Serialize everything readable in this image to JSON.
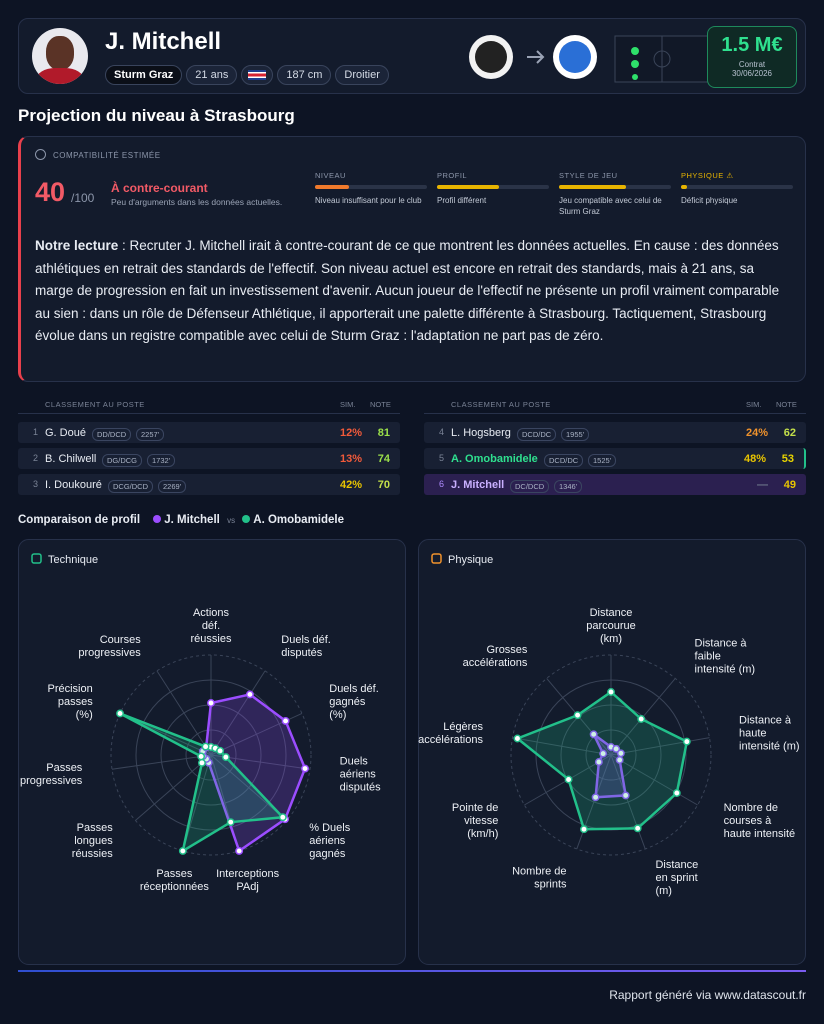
{
  "header": {
    "name": "J. Mitchell",
    "club": "Sturm Graz",
    "age": "21 ans",
    "height": "187 cm",
    "foot": "Droitier",
    "value": "1.5 M€",
    "contract_label": "Contrat",
    "contract_date": "30/06/2026"
  },
  "section_title": "Projection du niveau à Strasbourg",
  "compatibility": {
    "label": "COMPATIBILITÉ ESTIMÉE",
    "score": 40,
    "max": "/100",
    "verdict": "À contre-courant",
    "verdict_note": "Peu d'arguments dans les données actuelles.",
    "criteria": [
      {
        "name": "NIVEAU",
        "level": 30,
        "color": "#f07a2c",
        "note": "Niveau insuffisant pour le club"
      },
      {
        "name": "PROFIL",
        "level": 55,
        "color": "#e8b400",
        "note": "Profil différent"
      },
      {
        "name": "STYLE DE JEU",
        "level": 60,
        "color": "#e8b400",
        "note": "Jeu compatible avec celui de Sturm Graz"
      },
      {
        "name": "PHYSIQUE ⚠",
        "level": 5,
        "color": "#e8b400",
        "note": "Déficit physique"
      }
    ]
  },
  "reading": {
    "label": "Notre lecture",
    "text": ": Recruter J. Mitchell irait à contre-courant de ce que montrent les données actuelles. En cause : des données athlétiques en retrait des standards de l'effectif. Son niveau actuel est encore en retrait des standards, mais à 21 ans, sa marge de progression en fait un investissement d'avenir. Aucun joueur de l'effectif ne présente un profil vraiment comparable au sien : dans un rôle de Défenseur Athlétique, il apporterait une palette différente à Strasbourg. Tactiquement, Strasbourg évolue dans un registre compatible avec celui de Sturm Graz : l'adaptation ne part pas de zéro."
  },
  "ranking": {
    "headers": [
      "CLASSEMENT AU POSTE",
      "SIM.",
      "NOTE"
    ],
    "left": [
      [
        1,
        "G. Doué",
        "DD/DCD",
        "2257'",
        "12%",
        81
      ],
      [
        2,
        "B. Chilwell",
        "DG/DCG",
        "1732'",
        "13%",
        74
      ],
      [
        3,
        "I. Doukouré",
        "DCG/DCD",
        "2269'",
        "42%",
        70
      ]
    ],
    "right": [
      [
        4,
        "L. Hogsberg",
        "DCD/DC",
        "1955'",
        "24%",
        62
      ],
      [
        5,
        "A. Omobamidele",
        "DCD/DC",
        "1525'",
        "48%",
        53
      ],
      [
        6,
        "J. Mitchell",
        "DC/DCD",
        "1346'",
        "—",
        49
      ]
    ]
  },
  "comparison": {
    "title": "Comparaison de profil",
    "vs": "vs"
  },
  "chart_data": [
    {
      "type": "radar",
      "title": "Technique",
      "ylim": [
        0,
        100
      ],
      "categories": [
        "Actions\ndéf.\nréussies",
        "Duels déf.\ndisputés",
        "Duels déf.\ngagnés\n(%)",
        "Duels\naériens\ndisputés",
        "% Duels\naériens\ngagnés",
        "Interceptions\nPAdj",
        "Passes\nréceptionnées",
        "Passes\nlongues\nréussies",
        "Passes\nprogressives",
        "Précision\npasses\n(%)",
        "Courses\nprogressives"
      ],
      "series": [
        {
          "name": "J. Mitchell",
          "color": "#9b4dff",
          "values": [
            52,
            72,
            82,
            95,
            98,
            100,
            8,
            6,
            8,
            9,
            9
          ]
        },
        {
          "name": "A. Omobamidele",
          "color": "#22c08a",
          "values": [
            8,
            8,
            10,
            15,
            95,
            70,
            100,
            12,
            10,
            100,
            10
          ]
        }
      ]
    },
    {
      "type": "radar",
      "title": "Physique",
      "ylim": [
        0,
        100
      ],
      "categories": [
        "Distance\nparcourue\n(km)",
        "Distance à\nfaible\nintensité (m)",
        "Distance à\nhaute\nintensité (m)",
        "Nombre de\ncourses à\nhaute intensité",
        "Distance\nen sprint\n(m)",
        "Nombre de\nsprints",
        "Pointe de\nvitesse\n(km/h)",
        "Légères\naccélérations",
        "Grosses\naccélérations"
      ],
      "series": [
        {
          "name": "J. Mitchell",
          "color": "#9b4dff",
          "values": [
            8,
            8,
            10,
            10,
            43,
            45,
            14,
            8,
            27
          ]
        },
        {
          "name": "A. Omobamidele",
          "color": "#22c08a",
          "values": [
            63,
            47,
            77,
            76,
            78,
            79,
            49,
            95,
            52
          ]
        }
      ]
    }
  ],
  "footer": "Rapport généré via www.datascout.fr"
}
